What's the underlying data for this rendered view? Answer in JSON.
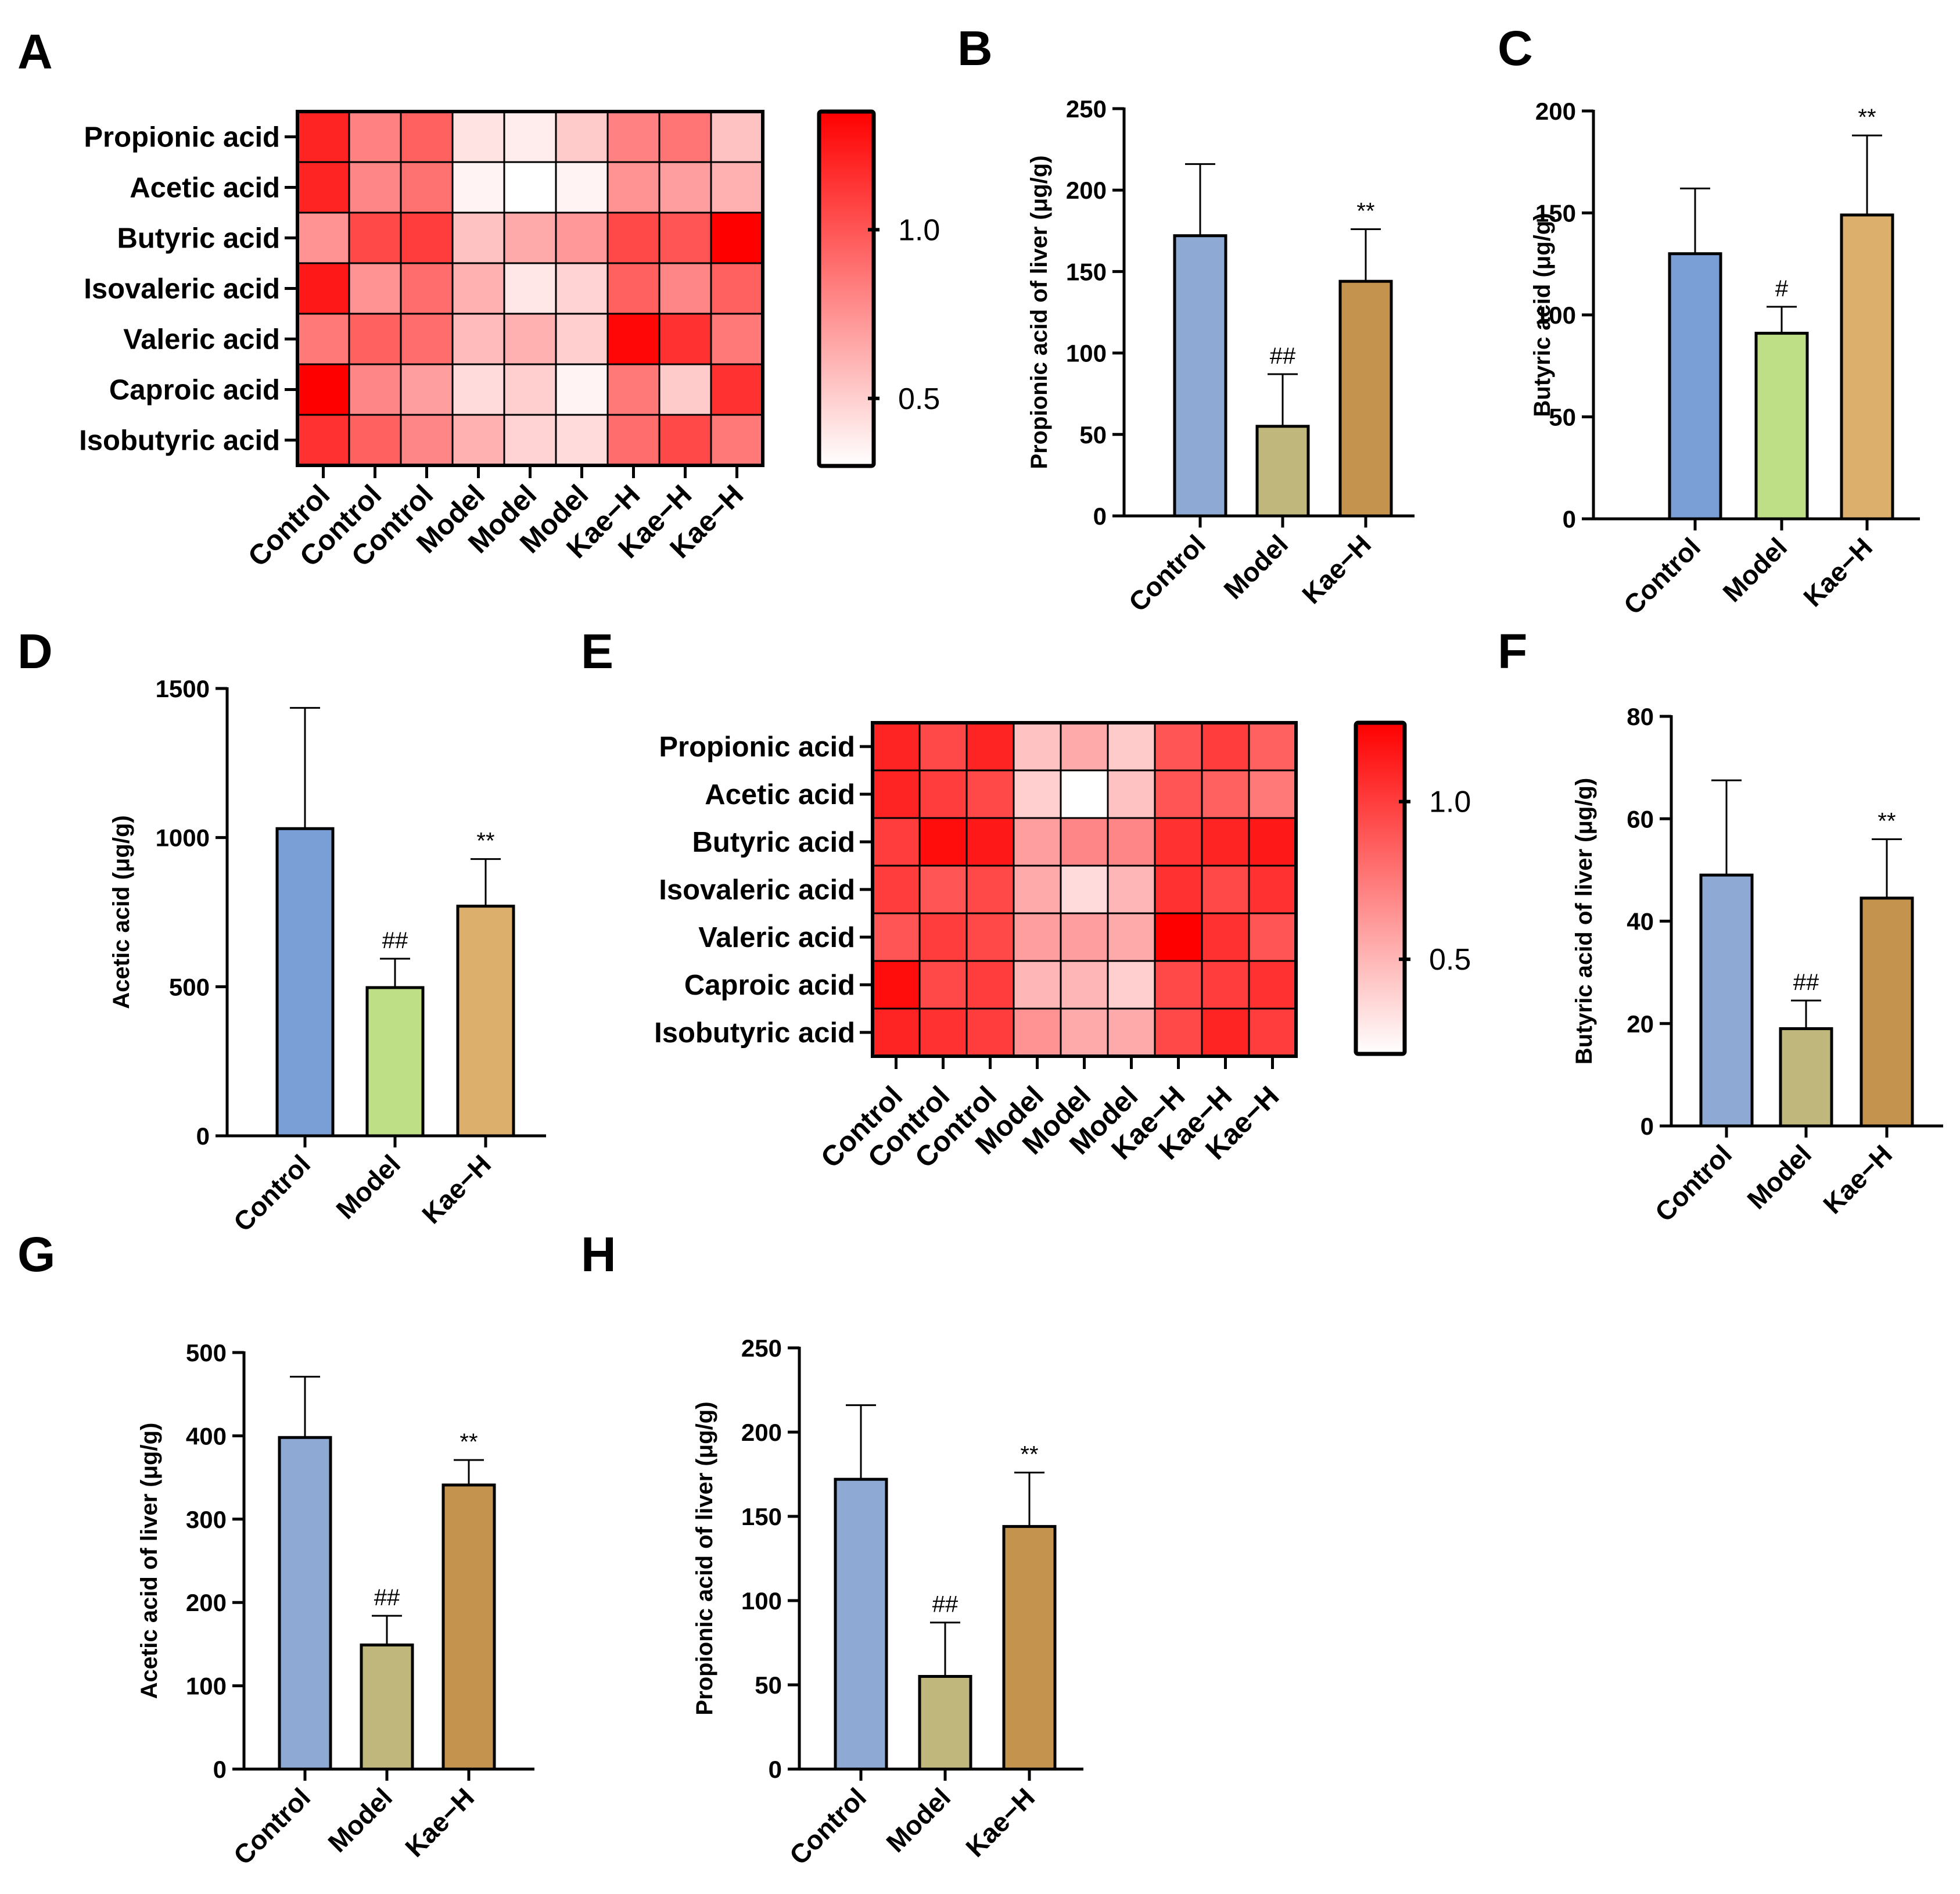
{
  "panels": [
    "A",
    "B",
    "C",
    "D",
    "E",
    "F",
    "G",
    "H"
  ],
  "chart_data": [
    {
      "panel": "A",
      "type": "heatmap",
      "rows": [
        "Propionic acid",
        "Acetic acid",
        "Butyric acid",
        "Isovaleric acid",
        "Valeric acid",
        "Caproic acid",
        "Isobutyric acid"
      ],
      "columns": [
        "Control",
        "Control",
        "Control",
        "Model",
        "Model",
        "Model",
        "Kae−H",
        "Kae−H",
        "Kae−H"
      ],
      "values": [
        [
          1.2,
          0.82,
          0.95,
          0.42,
          0.38,
          0.52,
          0.82,
          0.87,
          0.55
        ],
        [
          1.2,
          0.8,
          0.88,
          0.35,
          0.3,
          0.35,
          0.75,
          0.7,
          0.62
        ],
        [
          0.75,
          1.05,
          1.1,
          0.55,
          0.65,
          0.72,
          1.05,
          1.0,
          1.35
        ],
        [
          1.25,
          0.75,
          0.9,
          0.62,
          0.4,
          0.48,
          0.95,
          0.8,
          0.95
        ],
        [
          0.85,
          0.95,
          0.9,
          0.58,
          0.62,
          0.5,
          1.32,
          1.15,
          0.85
        ],
        [
          1.35,
          0.8,
          0.7,
          0.45,
          0.5,
          0.35,
          0.85,
          0.52,
          1.15
        ],
        [
          1.15,
          0.95,
          0.8,
          0.62,
          0.48,
          0.45,
          0.9,
          1.05,
          0.85
        ]
      ],
      "colorbar": {
        "min": 0.3,
        "max": 1.35,
        "ticks": [
          0.5,
          1.0
        ],
        "tick_labels": [
          "0.5",
          "1.0"
        ],
        "low_color": "#ffffff",
        "high_color": "#ff0000"
      }
    },
    {
      "panel": "B",
      "type": "bar",
      "ylabel": "Propionic acid of liver (μg/g)",
      "ylim": [
        0,
        250
      ],
      "yticks": [
        0,
        50,
        100,
        150,
        200,
        250
      ],
      "ytick_labels": [
        "0",
        "50",
        "100",
        "150",
        "200",
        "250"
      ],
      "categories": [
        "Control",
        "Model",
        "Kae−H"
      ],
      "values": [
        172,
        55,
        144
      ],
      "errors": [
        44,
        32,
        32
      ],
      "annotations": [
        "",
        "##",
        "**"
      ],
      "colors": [
        "#8eaad4",
        "#bfb77c",
        "#c4944f"
      ]
    },
    {
      "panel": "C",
      "type": "bar",
      "ylabel": "Butyric acid (μg/g)",
      "ylim": [
        0,
        200
      ],
      "yticks": [
        0,
        50,
        100,
        150,
        200
      ],
      "ytick_labels": [
        "0",
        "50",
        "100",
        "150",
        "200"
      ],
      "categories": [
        "Control",
        "Model",
        "Kae−H"
      ],
      "values": [
        130,
        91,
        149
      ],
      "errors": [
        32,
        13,
        39
      ],
      "annotations": [
        "",
        "#",
        "**"
      ],
      "colors": [
        "#7a9fd6",
        "#bfdf87",
        "#dcaf6c"
      ]
    },
    {
      "panel": "D",
      "type": "bar",
      "ylabel": "Acetic acid (μg/g)",
      "ylim": [
        0,
        1500
      ],
      "yticks": [
        0,
        500,
        1000,
        1500
      ],
      "ytick_labels": [
        "0",
        "500",
        "1000",
        "1500"
      ],
      "categories": [
        "Control",
        "Model",
        "Kae−H"
      ],
      "values": [
        1030,
        497,
        770
      ],
      "errors": [
        405,
        97,
        158
      ],
      "annotations": [
        "",
        "##",
        "**"
      ],
      "colors": [
        "#7a9fd6",
        "#bfdf87",
        "#dcaf6c"
      ]
    },
    {
      "panel": "E",
      "type": "heatmap",
      "rows": [
        "Propionic acid",
        "Acetic acid",
        "Butyric acid",
        "Isovaleric acid",
        "Valeric acid",
        "Caproic acid",
        "Isobutyric acid"
      ],
      "columns": [
        "Control",
        "Control",
        "Control",
        "Model",
        "Model",
        "Model",
        "Kae−H",
        "Kae−H",
        "Kae−H"
      ],
      "values": [
        [
          1.1,
          0.95,
          1.1,
          0.45,
          0.55,
          0.42,
          0.9,
          1.0,
          0.85
        ],
        [
          1.1,
          1.0,
          0.95,
          0.4,
          0.2,
          0.45,
          0.9,
          0.85,
          0.75
        ],
        [
          1.0,
          1.2,
          1.15,
          0.6,
          0.7,
          0.7,
          1.05,
          1.1,
          1.15
        ],
        [
          1.0,
          0.9,
          0.95,
          0.55,
          0.35,
          0.5,
          1.05,
          0.95,
          1.05
        ],
        [
          0.9,
          1.0,
          0.95,
          0.6,
          0.6,
          0.55,
          1.25,
          1.05,
          0.9
        ],
        [
          1.2,
          0.95,
          1.0,
          0.5,
          0.5,
          0.4,
          0.95,
          1.0,
          1.05
        ],
        [
          1.1,
          1.05,
          1.0,
          0.65,
          0.55,
          0.55,
          0.95,
          1.1,
          1.0
        ]
      ],
      "colorbar": {
        "min": 0.2,
        "max": 1.25,
        "ticks": [
          0.5,
          1.0
        ],
        "tick_labels": [
          "0.5",
          "1.0"
        ],
        "low_color": "#ffffff",
        "high_color": "#ff0000"
      }
    },
    {
      "panel": "F",
      "type": "bar",
      "ylabel": "Butyric acid of liver (μg/g)",
      "ylim": [
        0,
        80
      ],
      "yticks": [
        0,
        20,
        40,
        60,
        80
      ],
      "ytick_labels": [
        "0",
        "20",
        "40",
        "60",
        "80"
      ],
      "categories": [
        "Control",
        "Model",
        "Kae−H"
      ],
      "values": [
        49,
        19,
        44.5
      ],
      "errors": [
        18.5,
        5.5,
        11.5
      ],
      "annotations": [
        "",
        "##",
        "**"
      ],
      "colors": [
        "#8eaad4",
        "#bfb77c",
        "#c4944f"
      ]
    },
    {
      "panel": "G",
      "type": "bar",
      "ylabel": "Acetic acid of liver (μg/g)",
      "ylim": [
        0,
        500
      ],
      "yticks": [
        0,
        100,
        200,
        300,
        400,
        500
      ],
      "ytick_labels": [
        "0",
        "100",
        "200",
        "300",
        "400",
        "500"
      ],
      "categories": [
        "Control",
        "Model",
        "Kae−H"
      ],
      "values": [
        398,
        149,
        341
      ],
      "errors": [
        73,
        35,
        30
      ],
      "annotations": [
        "",
        "##",
        "**"
      ],
      "colors": [
        "#8eaad4",
        "#bfb77c",
        "#c4944f"
      ]
    },
    {
      "panel": "H",
      "type": "bar",
      "ylabel": "Propionic acid of liver (μg/g)",
      "ylim": [
        0,
        250
      ],
      "yticks": [
        0,
        50,
        100,
        150,
        200,
        250
      ],
      "ytick_labels": [
        "0",
        "50",
        "100",
        "150",
        "200",
        "250"
      ],
      "categories": [
        "Control",
        "Model",
        "Kae−H"
      ],
      "values": [
        172,
        55,
        144
      ],
      "errors": [
        44,
        32,
        32
      ],
      "annotations": [
        "",
        "##",
        "**"
      ],
      "colors": [
        "#8eaad4",
        "#bfb77c",
        "#c4944f"
      ]
    }
  ]
}
